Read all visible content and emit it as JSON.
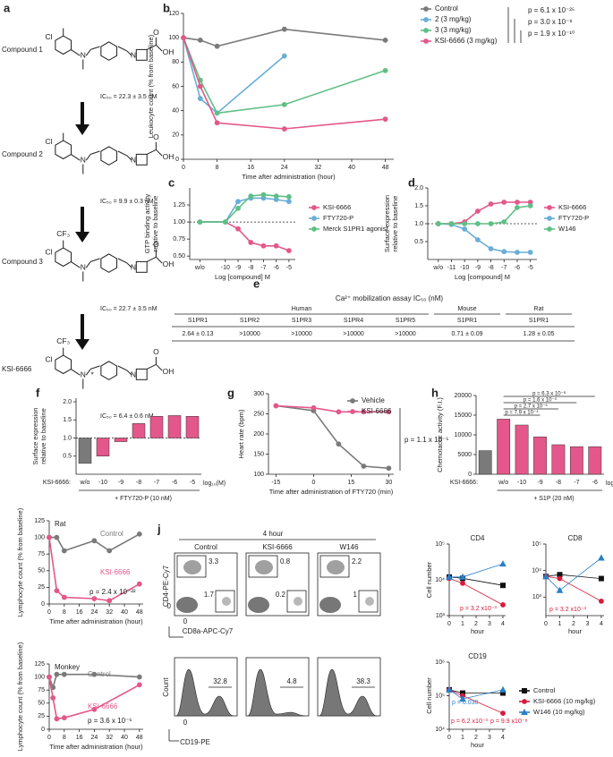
{
  "structures": {
    "panel": "a",
    "compounds": [
      {
        "label": "Compound 1",
        "ic50": "IC₅₀ = 22.3 ± 3.5 nM",
        "atoms": [
          "Cl",
          "N",
          "N",
          "OH",
          "O"
        ]
      },
      {
        "label": "Compound 2",
        "ic50": "IC₅₀ = 9.9 ± 0.3 nM",
        "atoms": [
          "Cl",
          "N",
          "N",
          "OH",
          "O"
        ]
      },
      {
        "label": "Compound 3",
        "ic50": "IC₅₀ = 22.7 ± 3.5 nM",
        "atoms": [
          "CF₃",
          "Cl",
          "N",
          "N",
          "OH",
          "O"
        ]
      },
      {
        "label": "KSI-6666",
        "ic50": "IC₅₀ = 6.4 ± 0.6 nM",
        "atoms": [
          "CF₃",
          "Cl",
          "N",
          "*",
          "N",
          "OH",
          "O"
        ]
      }
    ]
  },
  "table": {
    "panel": "e",
    "title": "Ca²⁺ mobilization assay IC₅₀ (nM)",
    "groups": [
      {
        "name": "Human",
        "columns": [
          "S1PR1",
          "S1PR2",
          "S1PR3",
          "S1PR4",
          "S1PR5"
        ]
      },
      {
        "name": "Mouse",
        "columns": [
          "S1PR1"
        ]
      },
      {
        "name": "Rat",
        "columns": [
          "S1PR1"
        ]
      }
    ],
    "row": [
      "2.64 ± 0.13",
      ">10000",
      ">10000",
      ">10000",
      ">10000",
      "0.71 ± 0.09",
      "1.28 ± 0.05"
    ]
  },
  "flow": {
    "panel": "j",
    "time": "4 hour",
    "columns": [
      "Control",
      "KSI-6666",
      "W146"
    ],
    "cd4_gate": [
      3.3,
      0.8,
      2.2
    ],
    "cd8_gate": [
      1.7,
      0.2,
      1.0
    ],
    "y_label": "CD4-PE-Cy7",
    "x_label": "CD8a-APC-Cy7",
    "zero": "0",
    "hist_gate": [
      32.8,
      4.8,
      38.3
    ],
    "hist_ylabel": "Count",
    "hist_xlabel": "CD19-PE"
  },
  "chart_data": [
    {
      "panel": "b",
      "type": "line",
      "ylabel": "Leukocyte count (% from baseline)",
      "xlabel": "Time after administration (hour)",
      "x": [
        0,
        4,
        8,
        24,
        48
      ],
      "xlim": [
        0,
        50
      ],
      "xticks": [
        0,
        8,
        16,
        24,
        32,
        40,
        48
      ],
      "ylim": [
        0,
        120
      ],
      "yticks": [
        0,
        20,
        40,
        60,
        80,
        100,
        120
      ],
      "legend": "right",
      "series": [
        {
          "name": "Control",
          "color": "#7a7a7a",
          "values": [
            100,
            98,
            93,
            107,
            98
          ]
        },
        {
          "name": "2 (3 mg/kg)",
          "color": "#6aaed6",
          "values": [
            100,
            50,
            38,
            85,
            null
          ]
        },
        {
          "name": "3 (3 mg/kg)",
          "color": "#5fbf85",
          "values": [
            100,
            65,
            38,
            45,
            73
          ]
        },
        {
          "name": "KSI-6666 (3 mg/kg)",
          "color": "#e4578a",
          "values": [
            100,
            60,
            30,
            25,
            33
          ]
        }
      ],
      "annotations": [
        {
          "text": "p = 6.1 x 10⁻²⁵"
        },
        {
          "text": "p = 3.0 x 10⁻⁸"
        },
        {
          "text": "p = 1.9 x 10⁻¹⁰"
        }
      ]
    },
    {
      "panel": "c",
      "type": "line",
      "ylabel": [
        "GTP binding activity",
        "relative to baseline"
      ],
      "xlabel": "Log [compound] M",
      "x": [
        -12,
        -10,
        -9,
        -8,
        -7,
        -6,
        -5
      ],
      "xlim": [
        -12.8,
        -4.5
      ],
      "xticks": [
        {
          "value": -12,
          "label": "w/o"
        },
        -10,
        -9,
        -8,
        -7,
        -6,
        -5
      ],
      "ylim": [
        0.45,
        1.5
      ],
      "yticks": [
        {
          "value": 0.5,
          "label": "0.50"
        },
        {
          "value": 0.75,
          "label": "0.75"
        },
        {
          "value": 1,
          "label": "1.00"
        },
        {
          "value": 1.25,
          "label": "1.25"
        }
      ],
      "baseline": 1,
      "legend": "right",
      "series": [
        {
          "name": "KSI-6666",
          "color": "#e4578a",
          "values": [
            1.0,
            1.0,
            0.9,
            0.7,
            0.65,
            0.65,
            0.58
          ]
        },
        {
          "name": "FTY720-P",
          "color": "#6aaed6",
          "values": [
            1.0,
            1.0,
            1.3,
            1.35,
            1.35,
            1.33,
            1.3
          ]
        },
        {
          "name": "Merck S1PR1 agonist",
          "color": "#5fbf85",
          "values": [
            1.0,
            1.0,
            1.2,
            1.38,
            1.4,
            1.38,
            1.37
          ]
        }
      ]
    },
    {
      "panel": "d",
      "type": "line",
      "ylabel": [
        "Surface expression",
        "relative to baseline"
      ],
      "xlabel": "Log [compound] M",
      "x": [
        -12,
        -11,
        -10,
        -9,
        -8,
        -7,
        -6,
        -5
      ],
      "xlim": [
        -12.8,
        -4.5
      ],
      "xticks": [
        {
          "value": -12,
          "label": "w/o"
        },
        -11,
        -10,
        -9,
        -8,
        -7,
        -6,
        -5
      ],
      "ylim": [
        0,
        2.0
      ],
      "yticks": [
        {
          "value": 0.5,
          "label": "0.5"
        },
        {
          "value": 1,
          "label": "1.0"
        },
        {
          "value": 1.5,
          "label": "1.5"
        },
        {
          "value": 2,
          "label": "2.0"
        }
      ],
      "baseline": 1,
      "legend": "right",
      "series": [
        {
          "name": "KSI-6666",
          "color": "#e4578a",
          "values": [
            1.0,
            1.0,
            1.05,
            1.35,
            1.55,
            1.6,
            1.6,
            1.6
          ]
        },
        {
          "name": "FTY720-P",
          "color": "#6aaed6",
          "values": [
            1.0,
            0.98,
            0.85,
            0.55,
            0.3,
            0.22,
            0.2,
            0.2
          ]
        },
        {
          "name": "W146",
          "color": "#5fbf85",
          "values": [
            1.0,
            1.0,
            1.0,
            1.0,
            1.0,
            1.05,
            1.45,
            1.5
          ]
        }
      ]
    },
    {
      "panel": "f",
      "type": "bar",
      "ylabel": [
        "Surface expression",
        "relative to baseline"
      ],
      "categories": [
        "w/o",
        "-10",
        "-9",
        "-8",
        "-7",
        "-6",
        "-5"
      ],
      "values": [
        0.3,
        0.5,
        0.9,
        1.4,
        1.6,
        1.62,
        1.6
      ],
      "colors": [
        "#7a7a7a",
        "#e4578a",
        "#e4578a",
        "#e4578a",
        "#e4578a",
        "#e4578a",
        "#e4578a"
      ],
      "ylim": [
        0,
        2.1
      ],
      "yticks": [
        {
          "value": 0.5,
          "label": "0.5"
        },
        {
          "value": 1,
          "label": "1.0"
        },
        {
          "value": 1.5,
          "label": "1.5"
        },
        {
          "value": 2,
          "label": "2.0"
        }
      ],
      "baseline": 1,
      "category_label": "KSI-6666:",
      "unit_label": "log₁₀(M)",
      "group_label": "+ FTY720-P (10 nM)"
    },
    {
      "panel": "g",
      "type": "line",
      "ylabel": "Heart rate (bpm)",
      "xlabel": "Time after administration of FTY720 (min)",
      "x": [
        -15,
        0,
        10,
        20,
        30
      ],
      "xlim": [
        -18,
        32
      ],
      "xticks": [
        -15,
        0,
        15,
        30
      ],
      "ylim": [
        100,
        300
      ],
      "yticks": [
        100,
        150,
        200,
        250,
        300
      ],
      "legend": "upper right",
      "series": [
        {
          "name": "Vehicle",
          "color": "#7a7a7a",
          "values": [
            270,
            258,
            175,
            120,
            115
          ]
        },
        {
          "name": "KSI-6666",
          "color": "#e4578a",
          "values": [
            270,
            265,
            255,
            255,
            255
          ]
        }
      ],
      "annotations": [
        {
          "text": "p = 1.1 x 10⁻⁵"
        }
      ]
    },
    {
      "panel": "h",
      "type": "bar",
      "ylabel": "Chemotactic activity (F.I.)",
      "categories": [
        null,
        "w/o",
        "-10",
        "-9",
        "-8",
        "-7",
        "-6"
      ],
      "values": [
        6000,
        14000,
        12500,
        9500,
        7500,
        7000,
        7000
      ],
      "colors": [
        "#7a7a7a",
        "#e4578a",
        "#e4578a",
        "#e4578a",
        "#e4578a",
        "#e4578a",
        "#e4578a"
      ],
      "ylim": [
        0,
        20000
      ],
      "yticks": [
        0,
        5000,
        10000,
        15000,
        20000
      ],
      "category_label": "KSI-6666:",
      "unit_label": "log₁₀(M)",
      "group_label": "+ S1P (20 nM)",
      "annotations": [
        {
          "text": "p = 6.3 x 10⁻⁶"
        },
        {
          "text": "p = 1.6 x 10⁻⁵"
        },
        {
          "text": "p = 2.7 x 10⁻⁵"
        },
        {
          "text": "p = 7.9 x 10⁻⁴"
        }
      ]
    },
    {
      "type": "line",
      "subtitle": "Rat",
      "ylabel": "Lymphocyte count (% from baseline)",
      "xlabel": "Time after administration (hour)",
      "x": [
        0,
        4,
        8,
        24,
        32,
        48
      ],
      "xlim": [
        0,
        50
      ],
      "xticks": [
        0,
        8,
        16,
        24,
        32,
        40,
        48
      ],
      "ylim": [
        0,
        125
      ],
      "yticks": [
        0,
        25,
        50,
        75,
        100,
        125
      ],
      "legend": "inline",
      "series": [
        {
          "name": "Control",
          "color": "#7a7a7a",
          "values": [
            100,
            100,
            80,
            95,
            80,
            105
          ]
        },
        {
          "name": "KSI-6666",
          "color": "#e4578a",
          "values": [
            100,
            20,
            10,
            8,
            5,
            30
          ]
        }
      ],
      "annotations": [
        {
          "text": "p = 2.4 x 10⁻²²"
        }
      ]
    },
    {
      "type": "line",
      "subtitle": "Monkey",
      "ylabel": "Lymphocyte count (% from baseline)",
      "xlabel": "Time after administration (hour)",
      "x": [
        0,
        2,
        4,
        8,
        24,
        48
      ],
      "xlim": [
        0,
        50
      ],
      "xticks": [
        0,
        8,
        16,
        24,
        32,
        40,
        48
      ],
      "ylim": [
        0,
        125
      ],
      "yticks": [
        0,
        25,
        50,
        75,
        100,
        125
      ],
      "legend": "inline",
      "series": [
        {
          "name": "Control",
          "color": "#7a7a7a",
          "values": [
            100,
            80,
            105,
            105,
            105,
            100
          ]
        },
        {
          "name": "KSI-6666",
          "color": "#e4578a",
          "values": [
            100,
            60,
            20,
            22,
            38,
            85
          ]
        }
      ],
      "annotations": [
        {
          "text": "p = 3.6 x 10⁻⁶"
        }
      ]
    },
    {
      "type": "scatter",
      "title": "CD4",
      "ylog": true,
      "xlabel": "hour",
      "ylabel": "Cell number",
      "x": [
        0,
        1,
        4
      ],
      "xlim": [
        0,
        4.2
      ],
      "xticks": [
        0,
        1,
        2,
        3,
        4
      ],
      "ylim": [
        1000,
        100000
      ],
      "yticks": [
        {
          "value": 1000,
          "label": "10³"
        },
        {
          "value": 10000,
          "label": "10⁴"
        },
        {
          "value": 100000,
          "label": "10⁵"
        }
      ],
      "series": [
        {
          "color": "#111111",
          "marker": "square",
          "values": [
            12000,
            11000,
            7000
          ]
        },
        {
          "color": "#d81b3c",
          "marker": "circle",
          "values": [
            11000,
            8000,
            2000
          ]
        },
        {
          "color": "#2a7fc9",
          "marker": "triangle",
          "values": [
            12000,
            12000,
            28000
          ]
        }
      ],
      "annotations": [
        {
          "text": "p = 3.2 x10⁻³",
          "color": "#d81b3c"
        }
      ]
    },
    {
      "type": "scatter",
      "title": "CD8",
      "ylog": true,
      "xlabel": "hour",
      "x": [
        0,
        1,
        4
      ],
      "xlim": [
        0,
        4.2
      ],
      "xticks": [
        0,
        1,
        2,
        3,
        4
      ],
      "ylim": [
        200,
        100000
      ],
      "yticks": [
        {
          "value": 1000,
          "label": "10³"
        },
        {
          "value": 10000,
          "label": "10⁴"
        },
        {
          "value": 100000,
          "label": "10⁵"
        }
      ],
      "series": [
        {
          "color": "#111111",
          "marker": "square",
          "values": [
            6000,
            7000,
            5000
          ]
        },
        {
          "color": "#d81b3c",
          "marker": "circle",
          "values": [
            6000,
            5000,
            700
          ]
        },
        {
          "color": "#2a7fc9",
          "marker": "triangle",
          "values": [
            6000,
            1800,
            30000
          ]
        }
      ],
      "annotations": [
        {
          "text": "p = 3.2 x10⁻³",
          "color": "#d81b3c"
        }
      ]
    },
    {
      "type": "scatter",
      "title": "CD19",
      "ylog": true,
      "xlabel": "hour",
      "ylabel": "Cell number",
      "x": [
        0,
        1,
        4
      ],
      "xlim": [
        0,
        4.2
      ],
      "xticks": [
        0,
        1,
        2,
        3,
        4
      ],
      "ylim": [
        10000,
        1000000
      ],
      "yticks": [
        {
          "value": 10000,
          "label": "10⁴"
        },
        {
          "value": 100000,
          "label": "10⁵"
        },
        {
          "value": 1000000,
          "label": "10⁶"
        }
      ],
      "legend": "right",
      "series": [
        {
          "name": "Control",
          "color": "#111111",
          "marker": "square",
          "values": [
            150000,
            120000,
            120000
          ]
        },
        {
          "name": "KSI-6666 (10 mg/kg)",
          "color": "#d81b3c",
          "marker": "circle",
          "values": [
            150000,
            100000,
            30000
          ]
        },
        {
          "name": "W146 (10 mg/kg)",
          "color": "#2a7fc9",
          "marker": "triangle",
          "values": [
            150000,
            80000,
            150000
          ]
        }
      ],
      "annotations": [
        {
          "text": "p = 0.030",
          "color": "#2a7fc9"
        },
        {
          "text": "p = 6.2 x10⁻³",
          "color": "#d81b3c"
        },
        {
          "text": "p = 9.9 x10⁻⁸",
          "color": "#d81b3c"
        }
      ]
    }
  ]
}
